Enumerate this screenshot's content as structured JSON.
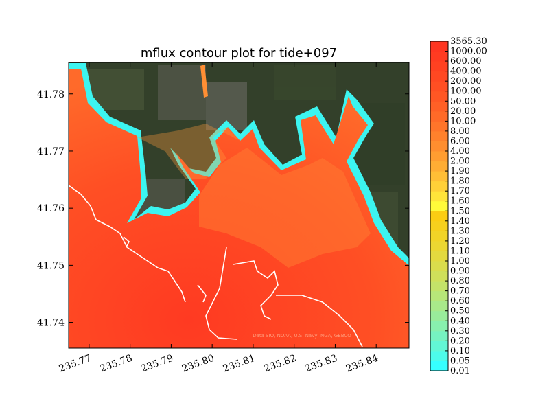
{
  "chart_data": {
    "type": "heatmap",
    "title": "mflux contour plot for tide+097",
    "xlim": [
      235.765,
      235.848
    ],
    "ylim": [
      41.7355,
      41.7855
    ],
    "x_ticks": [
      "235.77",
      "235.78",
      "235.79",
      "235.80",
      "235.81",
      "235.82",
      "235.83",
      "235.84"
    ],
    "x_tick_values": [
      235.77,
      235.78,
      235.79,
      235.8,
      235.81,
      235.82,
      235.83,
      235.84
    ],
    "y_ticks": [
      "41.74",
      "41.75",
      "41.76",
      "41.77",
      "41.78"
    ],
    "y_tick_values": [
      41.74,
      41.75,
      41.76,
      41.77,
      41.78
    ],
    "colorbar": {
      "levels": [
        "0.01",
        "0.05",
        "0.10",
        "0.20",
        "0.30",
        "0.40",
        "0.50",
        "0.60",
        "0.70",
        "0.80",
        "0.90",
        "1.00",
        "1.10",
        "1.20",
        "1.30",
        "1.40",
        "1.50",
        "1.60",
        "1.70",
        "1.80",
        "1.90",
        "2.00",
        "4.00",
        "6.00",
        "8.00",
        "10.00",
        "20.00",
        "50.00",
        "100.00",
        "200.00",
        "400.00",
        "600.00",
        "1000.00",
        "3565.30"
      ],
      "colors": [
        "#36ffff",
        "#4dfbea",
        "#62f7d5",
        "#76f3c1",
        "#88f0ae",
        "#99ec9b",
        "#a9e98a",
        "#b7e679",
        "#c4e369",
        "#d0e05a",
        "#dadd4c",
        "#e3da3f",
        "#ebd732",
        "#f1d427",
        "#f6d01d",
        "#fbcd13",
        "#fffb3a",
        "#ffe43a",
        "#ffd038",
        "#ffbe36",
        "#ffad34",
        "#ff9d31",
        "#ff8e2f",
        "#ff812c",
        "#ff752a",
        "#ff6a28",
        "#ff6026",
        "#ff5724",
        "#ff4f23",
        "#ff4822",
        "#ff4121",
        "#ff3b21",
        "#ff3621"
      ]
    },
    "credit": "Data SIO, NOAA, U.S. Navy, NGA, GEBCO"
  }
}
